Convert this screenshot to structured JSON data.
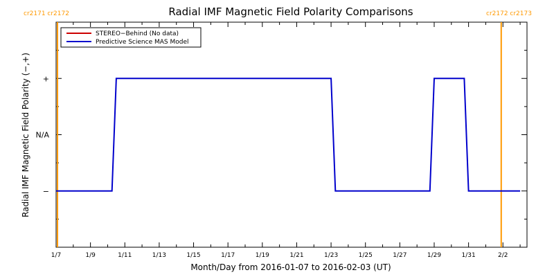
{
  "chart_data": {
    "type": "line",
    "title": "Radial IMF Magnetic Field Polarity Comparisons",
    "xlabel": "Month/Day from 2016-01-07 to 2016-02-03 (UT)",
    "ylabel": "Radial IMF Magnetic Field Polarity (−,+)",
    "xlim": [
      0,
      27.4
    ],
    "ylim": [
      -2,
      2
    ],
    "x_tick_labels": [
      "1/7",
      "1/9",
      "1/11",
      "1/13",
      "1/15",
      "1/17",
      "1/19",
      "1/21",
      "1/23",
      "1/25",
      "1/27",
      "1/29",
      "1/31",
      "2/2"
    ],
    "x_tick_values": [
      0,
      2,
      4,
      6,
      8,
      10,
      12,
      14,
      16,
      18,
      20,
      22,
      24,
      26
    ],
    "y_ticks": [
      {
        "value": 1,
        "label": "+"
      },
      {
        "value": 0,
        "label": "N/A"
      },
      {
        "value": -1,
        "label": "−"
      }
    ],
    "legend": {
      "placement": "top-left",
      "entries": [
        {
          "label": "STEREO−Behind (No data)",
          "color": "#cc0000"
        },
        {
          "label": "Predictive Science MAS Model",
          "color": "#0000cc"
        }
      ]
    },
    "series": [
      {
        "name": "Predictive Science MAS Model",
        "color": "#0000cc",
        "x": [
          0,
          3.25,
          3.5,
          16.0,
          16.25,
          21.75,
          22.0,
          23.75,
          24.0,
          27.0
        ],
        "y": [
          -1,
          -1,
          1,
          1,
          -1,
          -1,
          1,
          1,
          -1,
          -1
        ]
      }
    ],
    "carrington_markers": [
      {
        "x": 0.08,
        "label": "cr2171 cr2172",
        "color": "#ff9900"
      },
      {
        "x": 25.9,
        "label": "cr2172 cr2173",
        "color": "#ff9900"
      }
    ],
    "grid": false
  }
}
